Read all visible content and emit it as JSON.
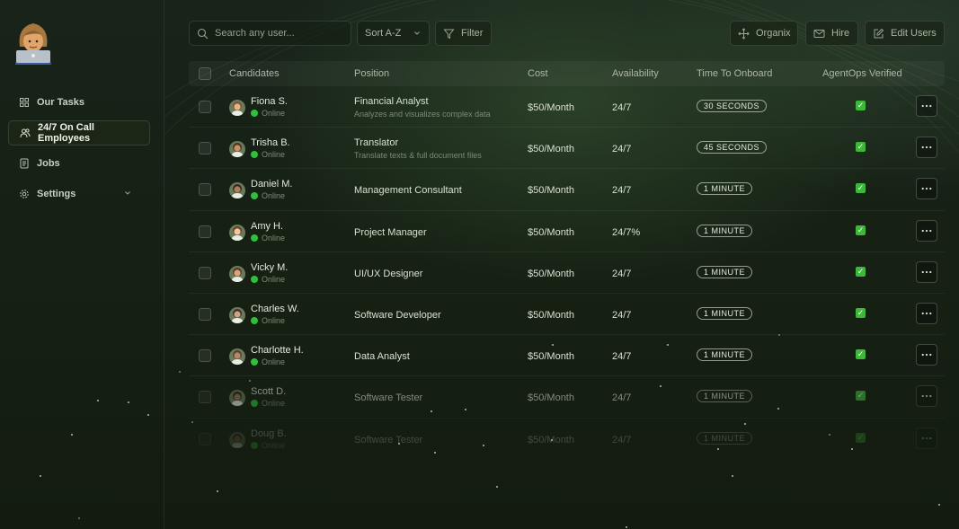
{
  "sidebar": {
    "items": [
      {
        "label": "Our Tasks",
        "icon": "grid-icon"
      },
      {
        "label": "24/7 On Call Employees",
        "icon": "users-icon",
        "active": true
      },
      {
        "label": "Jobs",
        "icon": "document-icon"
      },
      {
        "label": "Settings",
        "icon": "gear-icon"
      }
    ]
  },
  "toolbar": {
    "search_placeholder": "Search any user...",
    "sort_label": "Sort A-Z",
    "filter_label": "Filter",
    "organix_label": "Organix",
    "hire_label": "Hire",
    "edit_users_label": "Edit Users"
  },
  "table": {
    "columns": [
      "Candidates",
      "Position",
      "Cost",
      "Availability",
      "Time To Onboard",
      "AgentOps Verified"
    ],
    "rows": [
      {
        "name": "Fiona S.",
        "status": "Online",
        "position": "Financial Analyst",
        "position_desc": "Analyzes and visualizes complex data",
        "cost": "$50/Month",
        "availability": "24/7",
        "onboard": "30 SECONDS",
        "verified": true
      },
      {
        "name": "Trisha B.",
        "status": "Online",
        "position": "Translator",
        "position_desc": "Translate texts & full document files",
        "cost": "$50/Month",
        "availability": "24/7",
        "onboard": "45 SECONDS",
        "verified": true
      },
      {
        "name": "Daniel M.",
        "status": "Online",
        "position": "Management Consultant",
        "position_desc": "",
        "cost": "$50/Month",
        "availability": "24/7",
        "onboard": "1 MINUTE",
        "verified": true
      },
      {
        "name": "Amy H.",
        "status": "Online",
        "position": "Project Manager",
        "position_desc": "",
        "cost": "$50/Month",
        "availability": "24/7%",
        "onboard": "1 MINUTE",
        "verified": true
      },
      {
        "name": "Vicky M.",
        "status": "Online",
        "position": "UI/UX Designer",
        "position_desc": "",
        "cost": "$50/Month",
        "availability": "24/7",
        "onboard": "1 MINUTE",
        "verified": true
      },
      {
        "name": "Charles W.",
        "status": "Online",
        "position": "Software Developer",
        "position_desc": "",
        "cost": "$50/Month",
        "availability": "24/7",
        "onboard": "1 MINUTE",
        "verified": true
      },
      {
        "name": "Charlotte H.",
        "status": "Online",
        "position": "Data Analyst",
        "position_desc": "",
        "cost": "$50/Month",
        "availability": "24/7",
        "onboard": "1 MINUTE",
        "verified": true
      },
      {
        "name": "Scott D.",
        "status": "Online",
        "position": "Software Tester",
        "position_desc": "",
        "cost": "$50/Month",
        "availability": "24/7",
        "onboard": "1 MINUTE",
        "verified": true
      },
      {
        "name": "Doug B.",
        "status": "Online",
        "position": "Software Tester",
        "position_desc": "",
        "cost": "$50/Month",
        "availability": "24/7",
        "onboard": "1 MINUTE",
        "verified": true
      }
    ]
  },
  "colors": {
    "online": "#2fbf3a",
    "verified": "#3db83a",
    "background": "#141d10"
  }
}
